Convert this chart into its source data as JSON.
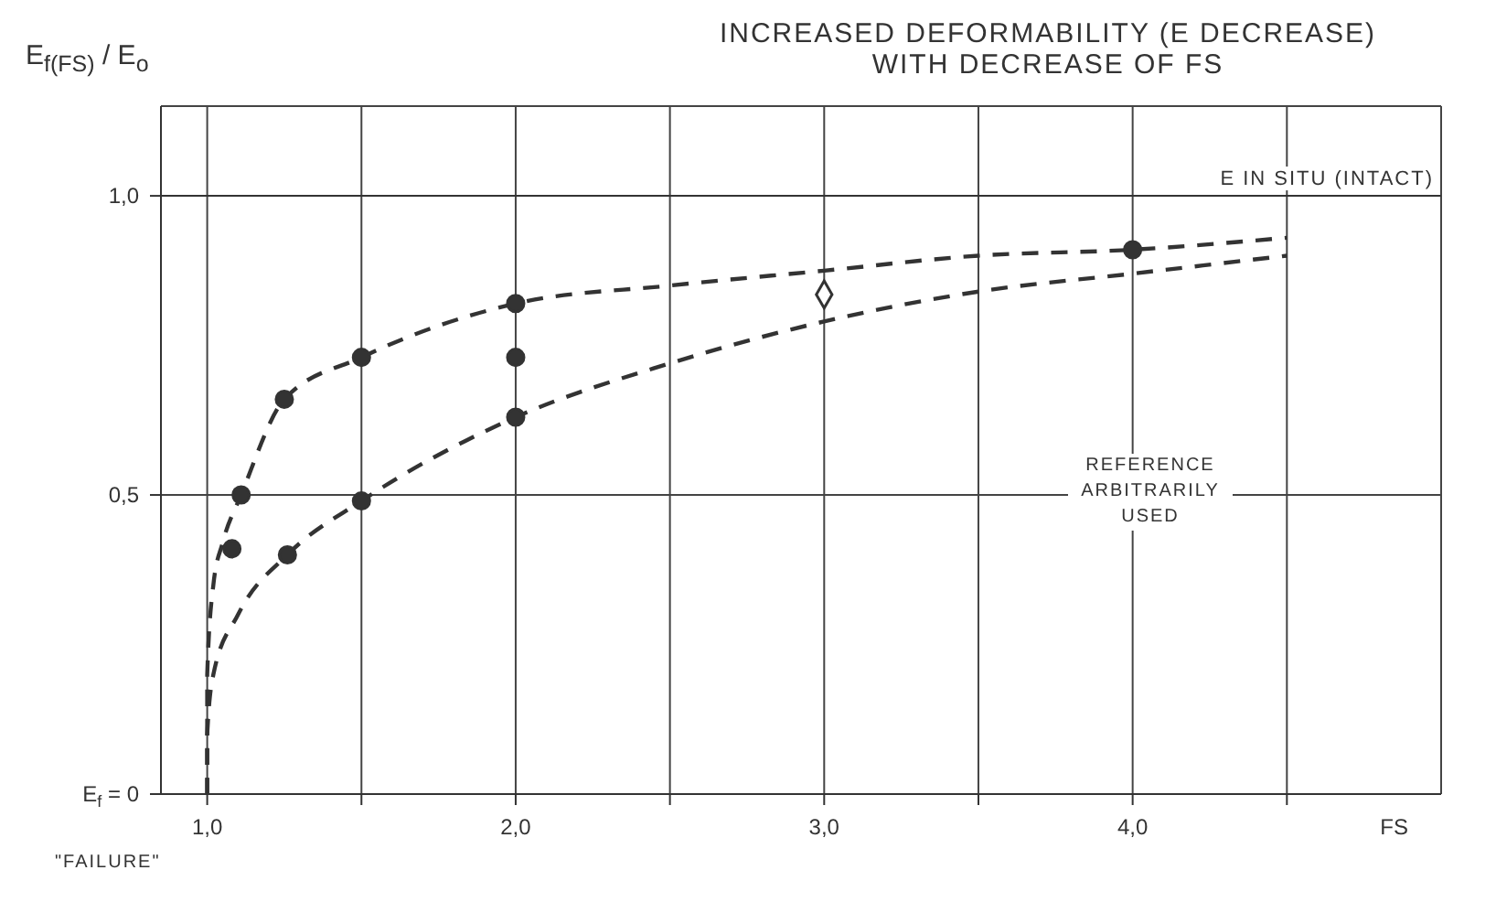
{
  "chart_data": {
    "type": "line",
    "title": "INCREASED DEFORMABILITY (E DECREASE)",
    "subtitle": "WITH DECREASE OF FS",
    "xlabel": "FS",
    "ylabel": "E$_{f(FS)}$ / E$_{o}$",
    "xlim": [
      0.85,
      5.0
    ],
    "ylim": [
      0,
      1.15
    ],
    "xticks": [
      {
        "value": 1.0,
        "label": "1,0"
      },
      {
        "value": 1.5,
        "label": null
      },
      {
        "value": 2.0,
        "label": "2,0"
      },
      {
        "value": 2.5,
        "label": null
      },
      {
        "value": 3.0,
        "label": "3,0"
      },
      {
        "value": 3.5,
        "label": null
      },
      {
        "value": 4.0,
        "label": "4,0"
      },
      {
        "value": 4.5,
        "label": null
      }
    ],
    "yticks": [
      {
        "value": 0,
        "label": "E$_{f}$ = 0"
      },
      {
        "value": 0.5,
        "label": "0,5"
      },
      {
        "value": 1.0,
        "label": "1,0"
      }
    ],
    "grid": true,
    "line_style": "dashed",
    "marker": "none",
    "series": [
      {
        "color": "#333333",
        "x": [
          1.0,
          1.0,
          1.02,
          1.05,
          1.11,
          1.25,
          1.5,
          2.0,
          2.5,
          3.0,
          3.5,
          4.0,
          4.5
        ],
        "values": [
          0.0,
          0.2,
          0.35,
          0.42,
          0.5,
          0.66,
          0.73,
          0.82,
          0.85,
          0.875,
          0.9,
          0.91,
          0.93
        ]
      },
      {
        "color": "#333333",
        "x": [
          1.0,
          1.0,
          1.02,
          1.1,
          1.26,
          1.5,
          2.0,
          2.5,
          3.0,
          3.5,
          4.0,
          4.5
        ],
        "values": [
          0.0,
          0.1,
          0.2,
          0.3,
          0.4,
          0.49,
          0.63,
          0.72,
          0.79,
          0.84,
          0.87,
          0.9
        ]
      },
      {
        "type": "scatter",
        "color": "#333333",
        "marker": "circle",
        "x": [
          1.08,
          1.11,
          1.25,
          1.5,
          2.0,
          2.0,
          2.0,
          1.26,
          1.5,
          4.0
        ],
        "values": [
          0.41,
          0.5,
          0.66,
          0.73,
          0.82,
          0.73,
          0.63,
          0.4,
          0.49,
          0.91
        ]
      },
      {
        "type": "scatter",
        "color": "#333333",
        "marker": "diamond",
        "x": [
          3.0
        ],
        "values": [
          0.835
        ]
      }
    ],
    "ref_lines": [
      {
        "axis": "y",
        "value": 1.0,
        "label": "E IN SITU (INTACT)"
      }
    ],
    "annotations": [
      "REFERENCE ARBITRARILY USED",
      "\"FAILURE\""
    ]
  }
}
